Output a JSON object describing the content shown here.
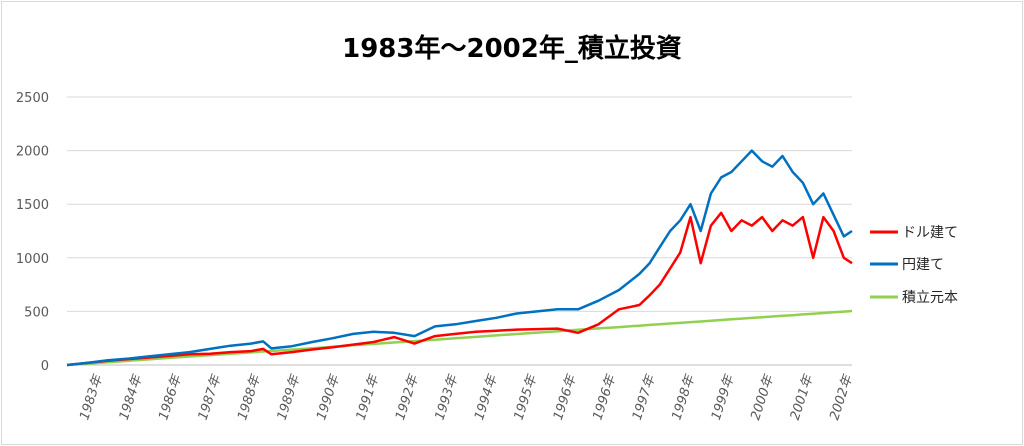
{
  "chart_data": {
    "type": "line",
    "title": "1983年～2002年_積立投資",
    "xlabel": "",
    "ylabel": "",
    "ylim": [
      0,
      2500
    ],
    "yticks": [
      0,
      500,
      1000,
      1500,
      2000,
      2500
    ],
    "grid": "horizontal",
    "legend_position": "right",
    "x_tick_labels": [
      "1983年",
      "1984年",
      "1986年",
      "1987年",
      "1988年",
      "1989年",
      "1990年",
      "1991年",
      "1992年",
      "1993年",
      "1994年",
      "1995年",
      "1996年",
      "1996年",
      "1997年",
      "1998年",
      "1999年",
      "2000年",
      "2001年",
      "2002年"
    ],
    "x": [
      1983.0,
      1983.5,
      1984.0,
      1984.5,
      1985.0,
      1985.5,
      1986.0,
      1986.5,
      1987.0,
      1987.5,
      1987.8,
      1988.0,
      1988.5,
      1989.0,
      1989.5,
      1990.0,
      1990.5,
      1991.0,
      1991.5,
      1992.0,
      1992.5,
      1993.0,
      1993.5,
      1994.0,
      1994.5,
      1995.0,
      1995.5,
      1996.0,
      1996.5,
      1997.0,
      1997.25,
      1997.5,
      1997.75,
      1998.0,
      1998.25,
      1998.5,
      1998.75,
      1999.0,
      1999.25,
      1999.5,
      1999.75,
      2000.0,
      2000.25,
      2000.5,
      2000.75,
      2001.0,
      2001.25,
      2001.5,
      2001.75,
      2002.0,
      2002.2
    ],
    "series": [
      {
        "name": "ドル建て",
        "color": "#ff0000",
        "values": [
          0,
          20,
          40,
          55,
          70,
          85,
          100,
          105,
          120,
          130,
          150,
          100,
          120,
          145,
          165,
          190,
          215,
          260,
          200,
          270,
          290,
          310,
          320,
          330,
          335,
          340,
          300,
          380,
          520,
          560,
          650,
          750,
          900,
          1050,
          1380,
          950,
          1300,
          1420,
          1250,
          1350,
          1300,
          1380,
          1250,
          1350,
          1300,
          1380,
          1000,
          1380,
          1250,
          1000,
          950
        ]
      },
      {
        "name": "円建て",
        "color": "#0070c0",
        "values": [
          0,
          20,
          45,
          60,
          80,
          100,
          120,
          150,
          180,
          200,
          220,
          155,
          175,
          215,
          250,
          290,
          310,
          300,
          270,
          360,
          380,
          410,
          440,
          480,
          500,
          520,
          520,
          600,
          700,
          850,
          950,
          1100,
          1250,
          1350,
          1500,
          1250,
          1600,
          1750,
          1800,
          1900,
          2000,
          1900,
          1850,
          1950,
          1800,
          1700,
          1500,
          1600,
          1400,
          1200,
          1250
        ]
      },
      {
        "name": "積立元本",
        "color": "#92d050",
        "values": [
          0,
          13,
          26,
          39,
          52,
          66,
          79,
          92,
          105,
          118,
          126,
          131,
          144,
          157,
          170,
          184,
          197,
          210,
          223,
          236,
          249,
          262,
          276,
          289,
          302,
          315,
          328,
          341,
          354,
          367,
          374,
          380,
          387,
          393,
          400,
          406,
          413,
          420,
          426,
          433,
          439,
          446,
          452,
          459,
          465,
          472,
          479,
          485,
          492,
          498,
          504
        ]
      }
    ]
  }
}
